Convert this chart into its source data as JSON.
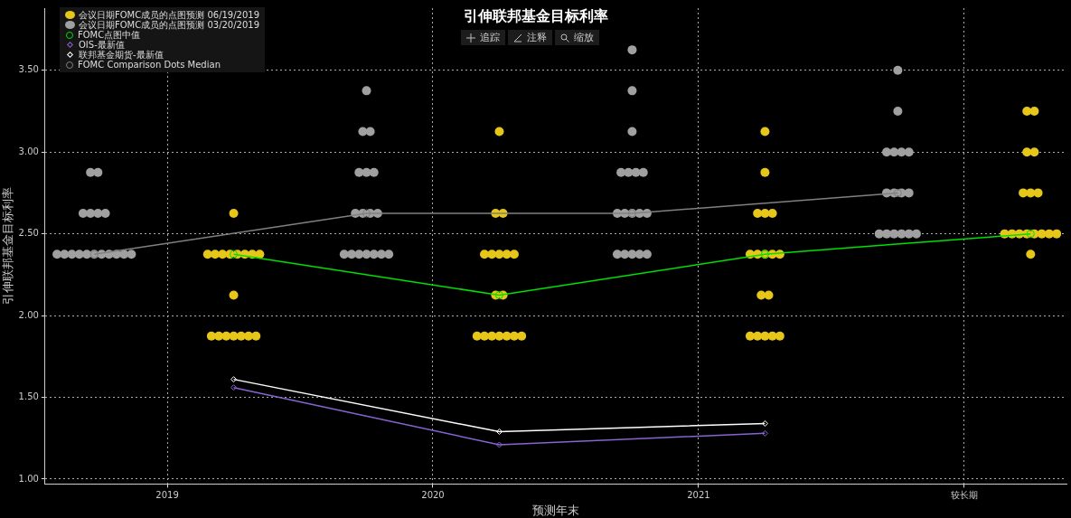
{
  "chart_data": {
    "type": "scatter",
    "title": "引伸联邦基金目标利率",
    "xlabel": "预测年末",
    "ylabel": "引伸联邦基金目标利率",
    "annotations": [
      "追踪",
      "注释",
      "缩放"
    ],
    "xlim": [
      2018.54,
      2022.385
    ],
    "xticks": [
      2019,
      2020,
      2021,
      {
        "value": 2022,
        "label": "较长期"
      }
    ],
    "ylim": [
      0.97,
      3.88
    ],
    "yticks": [
      {
        "value": 1,
        "label": "1.00"
      },
      {
        "value": 1.5,
        "label": "1.50"
      },
      {
        "value": 2,
        "label": "2.00"
      },
      {
        "value": 2.5,
        "label": "2.50"
      },
      {
        "value": 3,
        "label": "3.00"
      },
      {
        "value": 3.5,
        "label": "3.50"
      }
    ],
    "grid": true,
    "legend": "top left",
    "series": [
      {
        "name": "会议日期FOMC成员的点图预测 06/19/2019",
        "marker": "circle",
        "color": "#e6c619",
        "x": [
          2019.25,
          2019.152,
          2019.18,
          2019.208,
          2019.236,
          2019.264,
          2019.292,
          2019.32,
          2019.348,
          2019.25,
          2019.166,
          2019.194,
          2019.222,
          2019.25,
          2019.278,
          2019.306,
          2019.334,
          2020.25,
          2020.236,
          2020.264,
          2020.194,
          2020.222,
          2020.25,
          2020.278,
          2020.306,
          2020.236,
          2020.264,
          2020.166,
          2020.194,
          2020.222,
          2020.25,
          2020.278,
          2020.306,
          2020.334,
          2021.25,
          2021.25,
          2021.222,
          2021.25,
          2021.278,
          2021.194,
          2021.222,
          2021.25,
          2021.278,
          2021.306,
          2021.236,
          2021.264,
          2021.194,
          2021.222,
          2021.25,
          2021.278,
          2021.306,
          2022.236,
          2022.264,
          2022.236,
          2022.264,
          2022.222,
          2022.25,
          2022.278,
          2022.152,
          2022.18,
          2022.208,
          2022.236,
          2022.264,
          2022.292,
          2022.32,
          2022.348,
          2022.25
        ],
        "values": [
          2.625,
          2.375,
          2.375,
          2.375,
          2.375,
          2.375,
          2.375,
          2.375,
          2.375,
          2.125,
          1.875,
          1.875,
          1.875,
          1.875,
          1.875,
          1.875,
          1.875,
          3.125,
          2.625,
          2.625,
          2.375,
          2.375,
          2.375,
          2.375,
          2.375,
          2.125,
          2.125,
          1.875,
          1.875,
          1.875,
          1.875,
          1.875,
          1.875,
          1.875,
          3.125,
          2.875,
          2.625,
          2.625,
          2.625,
          2.375,
          2.375,
          2.375,
          2.375,
          2.375,
          2.125,
          2.125,
          1.875,
          1.875,
          1.875,
          1.875,
          1.875,
          3.25,
          3.25,
          3.0,
          3.0,
          2.75,
          2.75,
          2.75,
          2.5,
          2.5,
          2.5,
          2.5,
          2.5,
          2.5,
          2.5,
          2.5,
          2.375
        ]
      },
      {
        "name": "会议日期FOMC成员的点图预测 03/20/2019",
        "marker": "circle",
        "color": "#a0a0a0",
        "x": [
          2018.711,
          2018.739,
          2018.683,
          2018.711,
          2018.739,
          2018.767,
          2018.585,
          2018.613,
          2018.641,
          2018.669,
          2018.697,
          2018.725,
          2018.753,
          2018.781,
          2018.809,
          2018.837,
          2018.865,
          2019.75,
          2019.736,
          2019.764,
          2019.722,
          2019.75,
          2019.778,
          2019.708,
          2019.736,
          2019.764,
          2019.792,
          2019.666,
          2019.694,
          2019.722,
          2019.75,
          2019.778,
          2019.806,
          2019.834,
          2020.75,
          2020.75,
          2020.75,
          2020.708,
          2020.736,
          2020.764,
          2020.792,
          2020.694,
          2020.722,
          2020.75,
          2020.778,
          2020.806,
          2020.694,
          2020.722,
          2020.75,
          2020.778,
          2020.806,
          2021.75,
          2021.75,
          2021.708,
          2021.736,
          2021.764,
          2021.792,
          2021.708,
          2021.736,
          2021.764,
          2021.792,
          2021.68,
          2021.708,
          2021.736,
          2021.764,
          2021.792,
          2021.82
        ],
        "values": [
          2.875,
          2.875,
          2.625,
          2.625,
          2.625,
          2.625,
          2.375,
          2.375,
          2.375,
          2.375,
          2.375,
          2.375,
          2.375,
          2.375,
          2.375,
          2.375,
          2.375,
          3.375,
          3.125,
          3.125,
          2.875,
          2.875,
          2.875,
          2.625,
          2.625,
          2.625,
          2.625,
          2.375,
          2.375,
          2.375,
          2.375,
          2.375,
          2.375,
          2.375,
          3.625,
          3.375,
          3.125,
          2.875,
          2.875,
          2.875,
          2.875,
          2.625,
          2.625,
          2.625,
          2.625,
          2.625,
          2.375,
          2.375,
          2.375,
          2.375,
          2.375,
          3.5,
          3.25,
          3.0,
          3.0,
          3.0,
          3.0,
          2.75,
          2.75,
          2.75,
          2.75,
          2.5,
          2.5,
          2.5,
          2.5,
          2.5,
          2.5
        ]
      },
      {
        "name": "FOMC点图中值",
        "type": "line",
        "marker": "circle",
        "color": "#00e000",
        "x": [
          2019.25,
          2020.25,
          2021.25,
          2022.25
        ],
        "values": [
          2.375,
          2.125,
          2.375,
          2.5
        ]
      },
      {
        "name": "OIS-最新值",
        "type": "line",
        "marker": "diamond",
        "color": "#8a63d2",
        "x": [
          2019.25,
          2020.25,
          2021.25
        ],
        "values": [
          1.56,
          1.21,
          1.28
        ]
      },
      {
        "name": "联邦基金期货-最新值",
        "type": "line",
        "marker": "diamond",
        "color": "#ffffff",
        "x": [
          2019.25,
          2020.25,
          2021.25
        ],
        "values": [
          1.61,
          1.29,
          1.34
        ]
      },
      {
        "name": "FOMC Comparison Dots Median",
        "type": "line",
        "marker": "circle",
        "color": "#808080",
        "x": [
          2018.725,
          2019.75,
          2020.75,
          2021.75
        ],
        "values": [
          2.375,
          2.625,
          2.625,
          2.75
        ]
      }
    ]
  }
}
